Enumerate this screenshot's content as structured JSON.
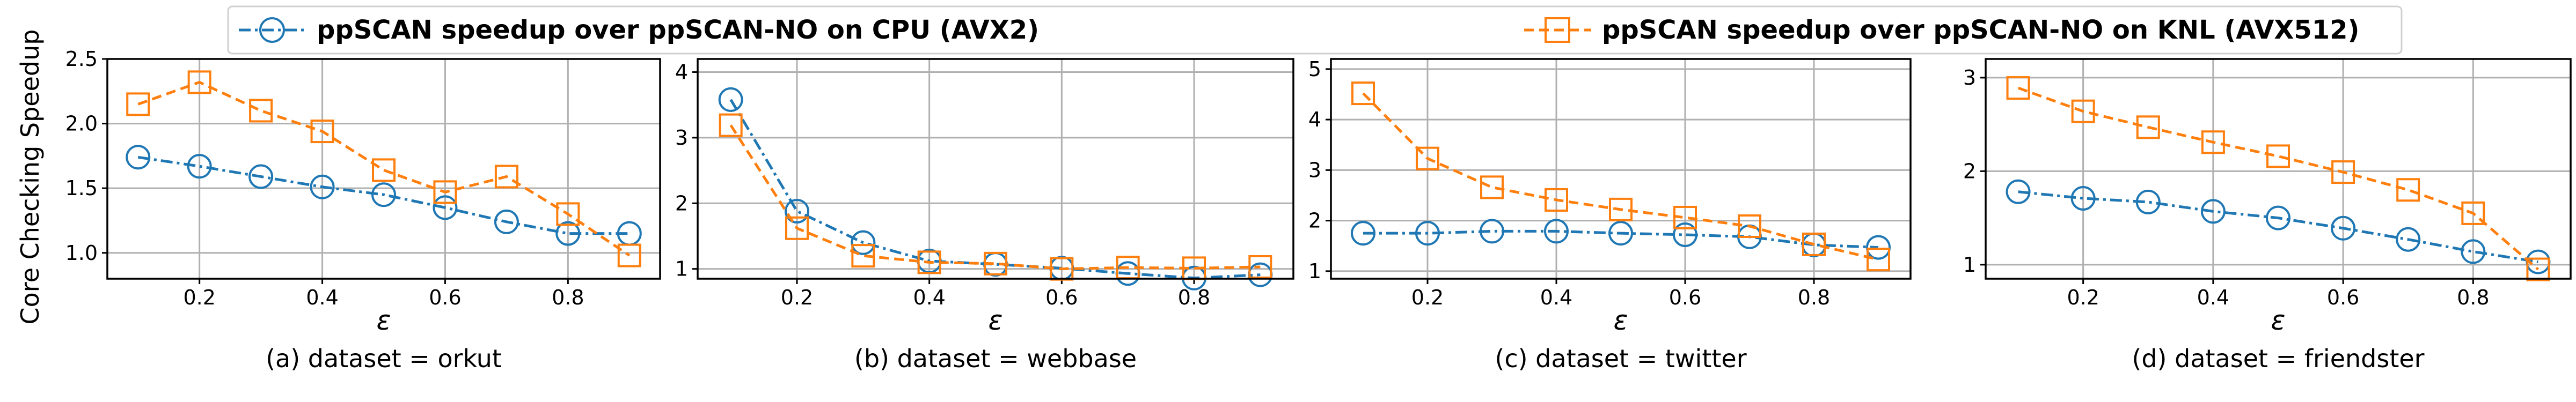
{
  "legend": {
    "items": [
      {
        "label": "ppSCAN speedup over ppSCAN-NO on CPU (AVX2)",
        "color": "#1f77b4",
        "marker": "circle",
        "line": "dashdot"
      },
      {
        "label": "ppSCAN speedup over ppSCAN-NO on KNL (AVX512)",
        "color": "#ff7f0e",
        "marker": "square",
        "line": "dashed"
      }
    ]
  },
  "shared_ylabel": "Core Checking Speedup",
  "chart_data": [
    {
      "type": "line",
      "caption": "(a) dataset = orkut",
      "xlabel": "ε",
      "x": [
        0.1,
        0.2,
        0.3,
        0.4,
        0.5,
        0.6,
        0.7,
        0.8,
        0.9
      ],
      "xlim": [
        0.05,
        0.95
      ],
      "ylim": [
        0.8,
        2.5
      ],
      "xticks": [
        "0.2",
        "0.4",
        "0.6",
        "0.8"
      ],
      "yticks": [
        "1.0",
        "1.5",
        "2.0",
        "2.5"
      ],
      "grid": true,
      "series": [
        {
          "name": "ppSCAN speedup over ppSCAN-NO on CPU (AVX2)",
          "values": [
            1.74,
            1.67,
            1.59,
            1.51,
            1.45,
            1.35,
            1.24,
            1.15,
            1.15
          ]
        },
        {
          "name": "ppSCAN speedup over ppSCAN-NO on KNL (AVX512)",
          "values": [
            2.15,
            2.32,
            2.1,
            1.94,
            1.64,
            1.47,
            1.59,
            1.3,
            0.98
          ]
        }
      ]
    },
    {
      "type": "line",
      "caption": "(b) dataset = webbase",
      "xlabel": "ε",
      "x": [
        0.1,
        0.2,
        0.3,
        0.4,
        0.5,
        0.6,
        0.7,
        0.8,
        0.9
      ],
      "xlim": [
        0.05,
        0.95
      ],
      "ylim": [
        0.85,
        4.2
      ],
      "xticks": [
        "0.2",
        "0.4",
        "0.6",
        "0.8"
      ],
      "yticks": [
        "1",
        "2",
        "3",
        "4"
      ],
      "grid": true,
      "series": [
        {
          "name": "ppSCAN speedup over ppSCAN-NO on CPU (AVX2)",
          "values": [
            3.58,
            1.88,
            1.4,
            1.12,
            1.07,
            1.01,
            0.93,
            0.86,
            0.91
          ]
        },
        {
          "name": "ppSCAN speedup over ppSCAN-NO on KNL (AVX512)",
          "values": [
            3.19,
            1.62,
            1.2,
            1.1,
            1.08,
            1.0,
            1.02,
            1.01,
            1.03
          ]
        }
      ]
    },
    {
      "type": "line",
      "caption": "(c) dataset = twitter",
      "xlabel": "ε",
      "x": [
        0.1,
        0.2,
        0.3,
        0.4,
        0.5,
        0.6,
        0.7,
        0.8,
        0.9
      ],
      "xlim": [
        0.05,
        0.95
      ],
      "ylim": [
        0.85,
        5.2
      ],
      "xticks": [
        "0.2",
        "0.4",
        "0.6",
        "0.8"
      ],
      "yticks": [
        "1",
        "2",
        "3",
        "4",
        "5"
      ],
      "grid": true,
      "series": [
        {
          "name": "ppSCAN speedup over ppSCAN-NO on CPU (AVX2)",
          "values": [
            1.75,
            1.75,
            1.79,
            1.79,
            1.75,
            1.72,
            1.68,
            1.52,
            1.47
          ]
        },
        {
          "name": "ppSCAN speedup over ppSCAN-NO on KNL (AVX512)",
          "values": [
            4.52,
            3.23,
            2.66,
            2.41,
            2.22,
            2.06,
            1.89,
            1.53,
            1.23
          ]
        }
      ]
    },
    {
      "type": "line",
      "caption": "(d) dataset = friendster",
      "xlabel": "ε",
      "x": [
        0.1,
        0.2,
        0.3,
        0.4,
        0.5,
        0.6,
        0.7,
        0.8,
        0.9
      ],
      "xlim": [
        0.05,
        0.95
      ],
      "ylim": [
        0.85,
        3.2
      ],
      "xticks": [
        "0.2",
        "0.4",
        "0.6",
        "0.8"
      ],
      "yticks": [
        "1",
        "2",
        "3"
      ],
      "grid": true,
      "series": [
        {
          "name": "ppSCAN speedup over ppSCAN-NO on CPU (AVX2)",
          "values": [
            1.78,
            1.71,
            1.67,
            1.57,
            1.5,
            1.39,
            1.27,
            1.14,
            1.03
          ]
        },
        {
          "name": "ppSCAN speedup over ppSCAN-NO on KNL (AVX512)",
          "values": [
            2.89,
            2.64,
            2.47,
            2.31,
            2.16,
            1.99,
            1.8,
            1.55,
            0.95
          ]
        }
      ]
    }
  ]
}
